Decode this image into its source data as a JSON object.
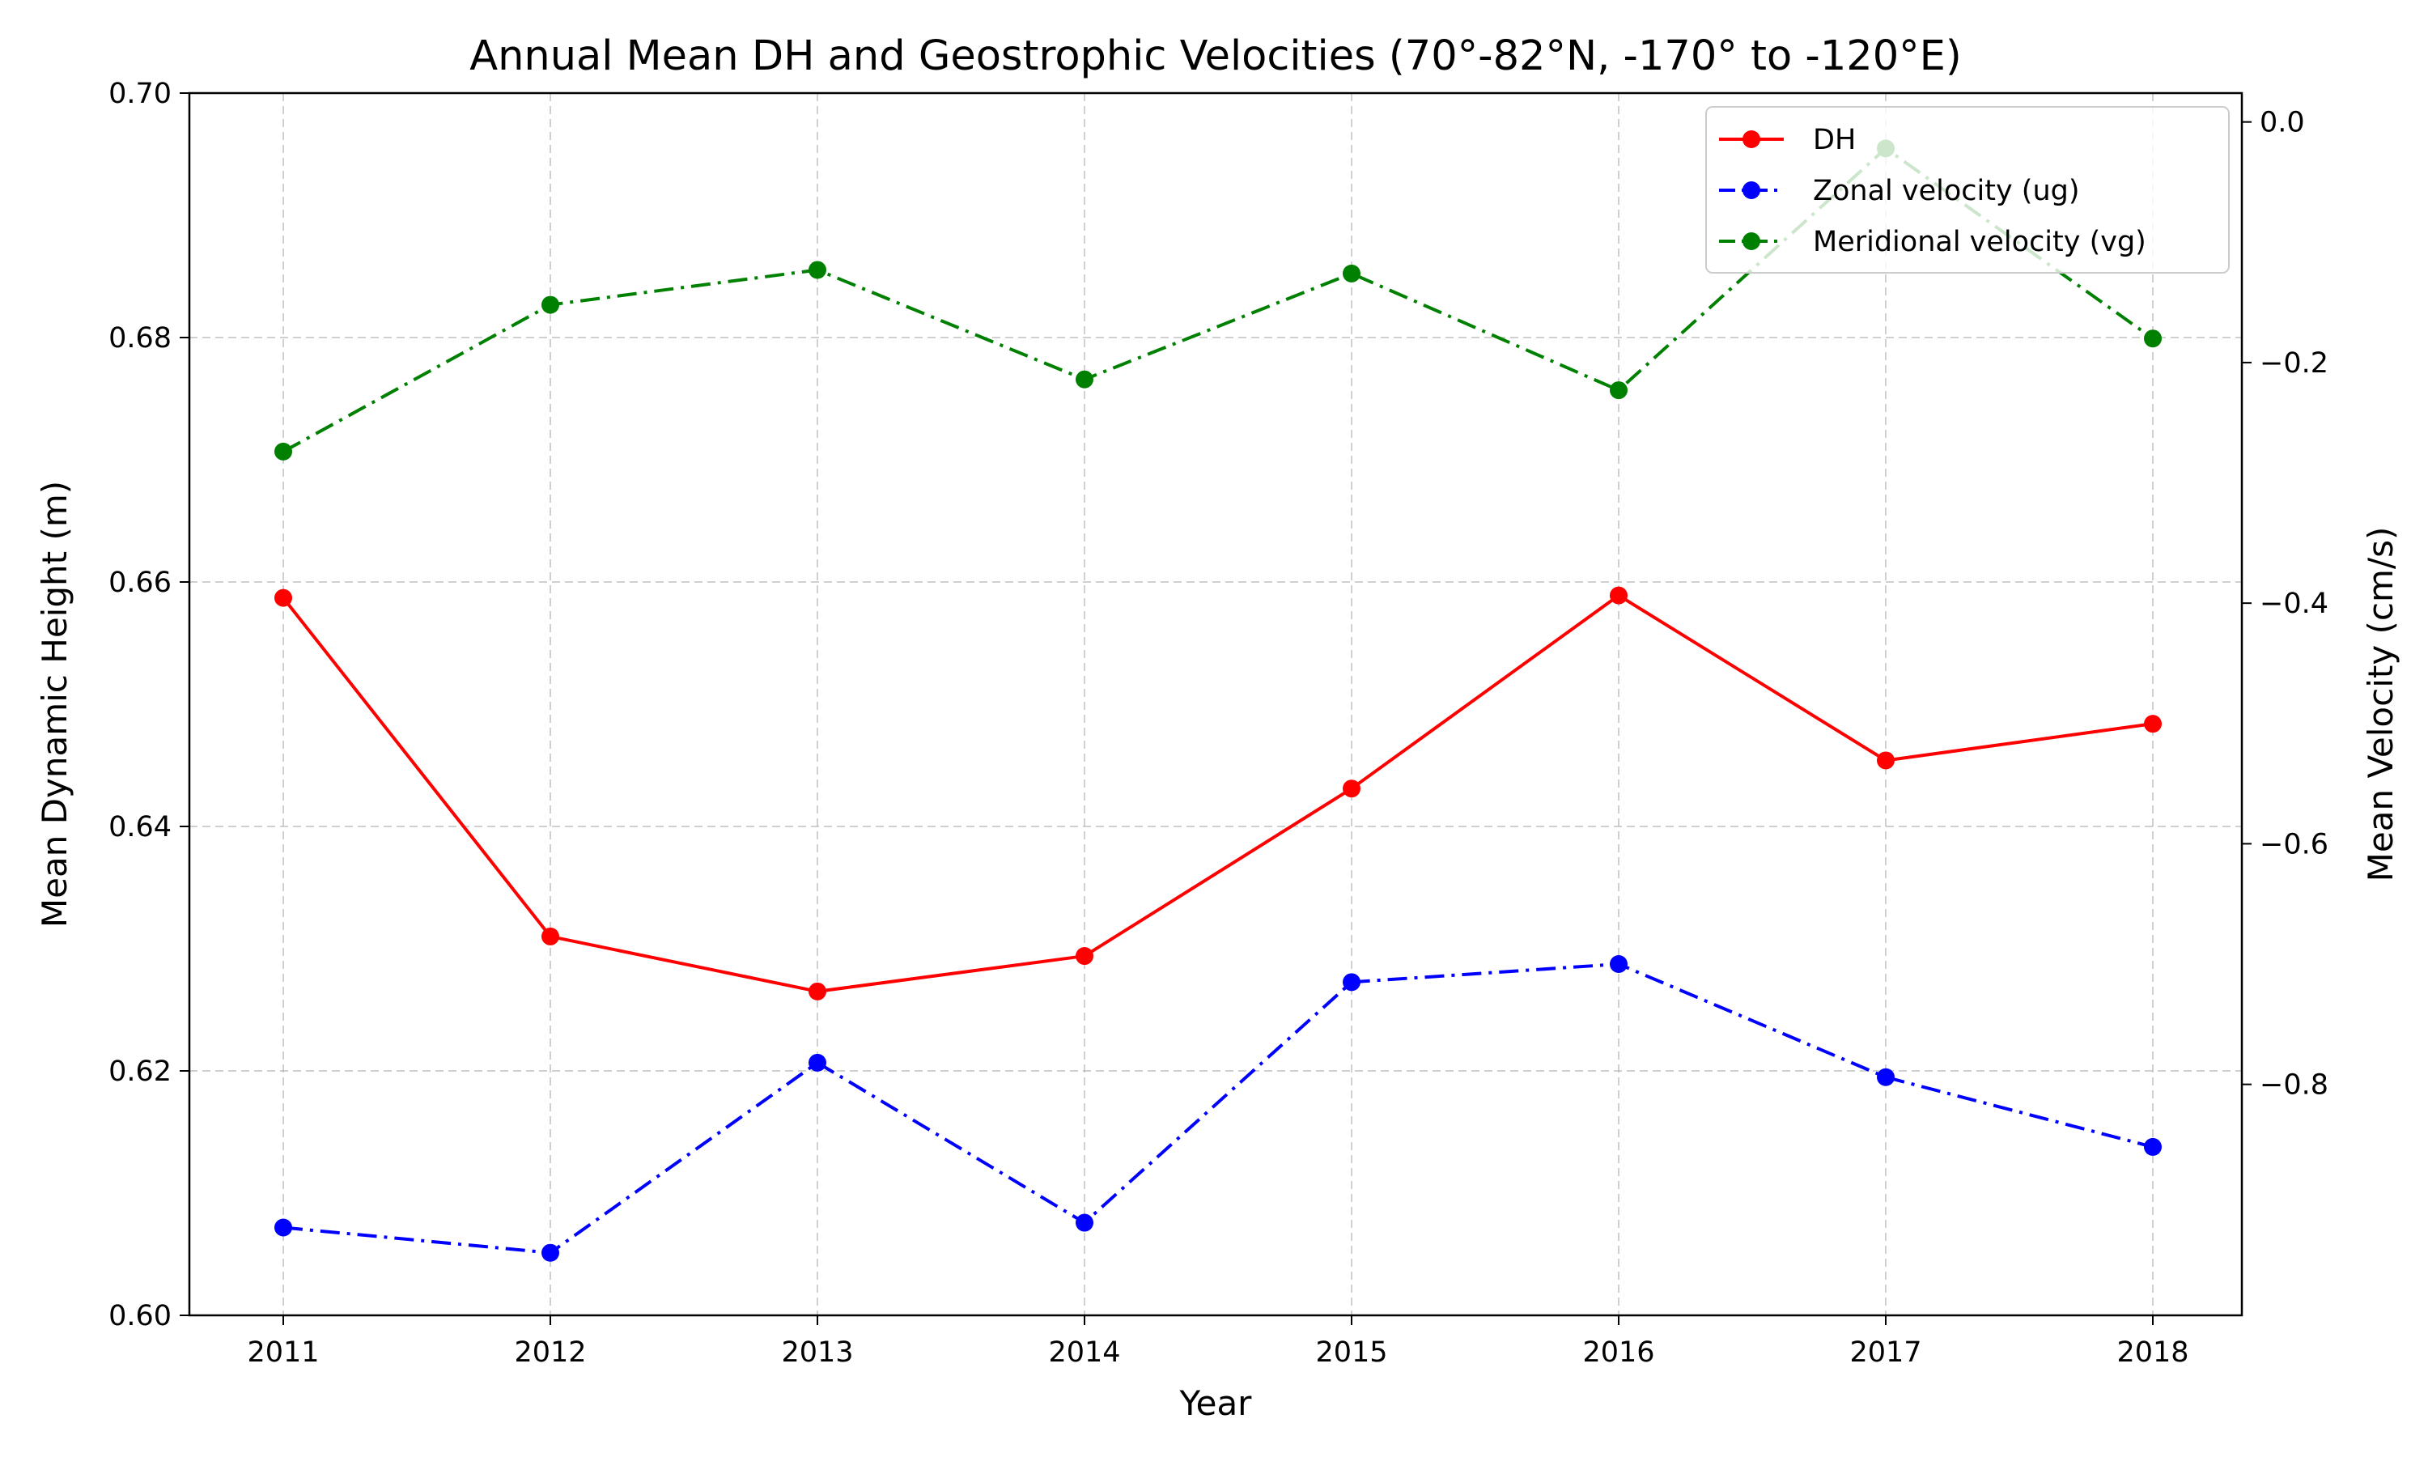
{
  "chart_data": {
    "type": "line",
    "title": "Annual Mean DH and Geostrophic Velocities (70°-82°N, -170° to -120°E)",
    "xlabel": "Year",
    "ylabel_left": "Mean Dynamic Height (m)",
    "ylabel_right": "Mean Velocity (cm/s)",
    "x": [
      2011,
      2012,
      2013,
      2014,
      2015,
      2016,
      2017,
      2018
    ],
    "xtick_labels": [
      "2011",
      "2012",
      "2013",
      "2014",
      "2015",
      "2016",
      "2017",
      "2018"
    ],
    "ylim_left": [
      0.6,
      0.7
    ],
    "yticks_left": [
      "0.60",
      "0.62",
      "0.64",
      "0.66",
      "0.68",
      "0.70"
    ],
    "ylim_right": [
      -0.992,
      0.024
    ],
    "yticks_right": [
      "−0.8",
      "−0.6",
      "−0.4",
      "−0.2",
      "0.0"
    ],
    "grid": true,
    "legend_position": "upper-right",
    "series": [
      {
        "name": "DH",
        "axis": "left",
        "color": "#ff0000",
        "linestyle": "solid",
        "values": [
          0.6587,
          0.631,
          0.6265,
          0.6294,
          0.6431,
          0.6589,
          0.6454,
          0.6484
        ]
      },
      {
        "name": "Zonal velocity (ug)",
        "axis": "right",
        "color": "#0000ff",
        "linestyle": "dashdot",
        "values": [
          -0.919,
          -0.94,
          -0.782,
          -0.915,
          -0.715,
          -0.7,
          -0.794,
          -0.852
        ]
      },
      {
        "name": "Meridional velocity (vg)",
        "axis": "right",
        "color": "#008000",
        "linestyle": "dashdot",
        "values": [
          -0.274,
          -0.152,
          -0.123,
          -0.214,
          -0.126,
          -0.223,
          -0.022,
          -0.18
        ]
      }
    ]
  }
}
